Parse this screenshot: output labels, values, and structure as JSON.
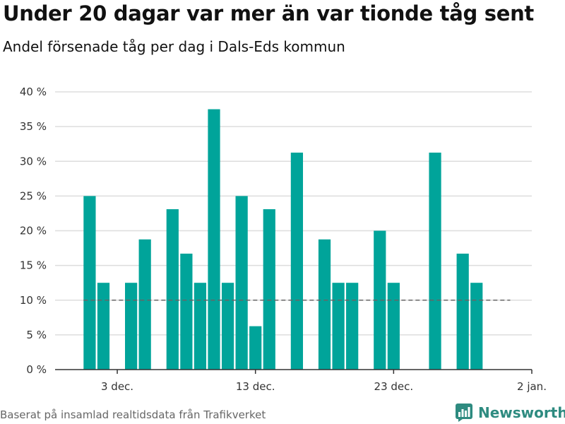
{
  "header": {
    "title": "Under 20 dagar var mer än var tionde tåg sent",
    "subtitle": "Andel försenade tåg per dag i Dals-Eds kommun"
  },
  "footer": {
    "source": "Baserat på insamlad realtidsdata från Trafikverket",
    "brand": "Newsworthy",
    "brand_icon": "bar-chart-logo-icon"
  },
  "colors": {
    "bar": "#00a49a",
    "reference_line": "#666666",
    "grid": "#dddddd",
    "brand": "#2e8b80"
  },
  "chart_data": {
    "type": "bar",
    "x_start_day": 1,
    "y_ticks": [
      "0 %",
      "5 %",
      "10 %",
      "15 %",
      "20 %",
      "25 %",
      "30 %",
      "35 %",
      "40 %"
    ],
    "ylim": [
      0,
      40
    ],
    "x_ticks": [
      {
        "day": 3,
        "label": "3 dec."
      },
      {
        "day": 13,
        "label": "13 dec."
      },
      {
        "day": 23,
        "label": "23 dec."
      },
      {
        "day": 33,
        "label": "2 jan."
      }
    ],
    "xlim": [
      -1.5,
      33
    ],
    "reference_line": {
      "value": 10,
      "x_from": 1,
      "x_to": 31
    },
    "values": [
      25,
      12.5,
      0,
      12.5,
      18.75,
      0,
      23.1,
      16.7,
      12.5,
      37.5,
      12.5,
      25,
      6.25,
      23.1,
      0,
      31.25,
      0,
      18.75,
      12.5,
      12.5,
      0,
      20,
      12.5,
      0,
      0,
      31.25,
      0,
      16.7,
      12.5,
      0,
      0
    ],
    "grid": true,
    "legend": "none",
    "title": "Under 20 dagar var mer än var tionde tåg sent",
    "subtitle": "Andel försenade tåg per dag i Dals-Eds kommun",
    "xlabel": "",
    "ylabel": ""
  }
}
